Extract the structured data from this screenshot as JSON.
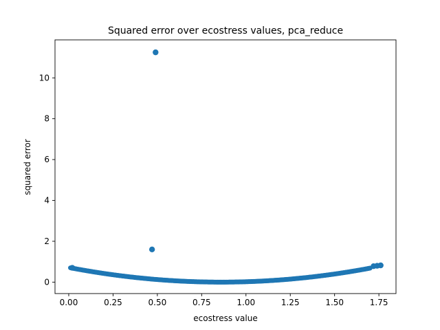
{
  "chart_data": {
    "type": "scatter",
    "title": "Squared error over ecostress values, pca_reduce",
    "xlabel": "ecostress value",
    "ylabel": "squared error",
    "xlim": [
      -0.0775,
      1.8465
    ],
    "ylim": [
      -0.56,
      11.86
    ],
    "xticks": [
      0.0,
      0.25,
      0.5,
      0.75,
      1.0,
      1.25,
      1.5,
      1.75
    ],
    "xtick_labels": [
      "0.00",
      "0.25",
      "0.50",
      "0.75",
      "1.00",
      "1.25",
      "1.50",
      "1.75"
    ],
    "yticks": [
      0,
      2,
      4,
      6,
      8,
      10
    ],
    "ytick_labels": [
      "0",
      "2",
      "4",
      "6",
      "8",
      "10"
    ],
    "grid": false,
    "legend": "none",
    "marker_color": "#1f77b4",
    "curve": {
      "x_min": 0.01,
      "x_max": 1.7,
      "vertex_x": 0.86,
      "vertex_y": 0.0,
      "value_at_x_min": 0.7,
      "step": 0.005
    },
    "points": [
      {
        "x": 0.02,
        "y": 0.7
      },
      {
        "x": 1.72,
        "y": 0.78
      },
      {
        "x": 1.74,
        "y": 0.8
      },
      {
        "x": 1.76,
        "y": 0.82
      },
      {
        "x": 0.47,
        "y": 1.6
      },
      {
        "x": 0.49,
        "y": 11.25
      }
    ]
  }
}
